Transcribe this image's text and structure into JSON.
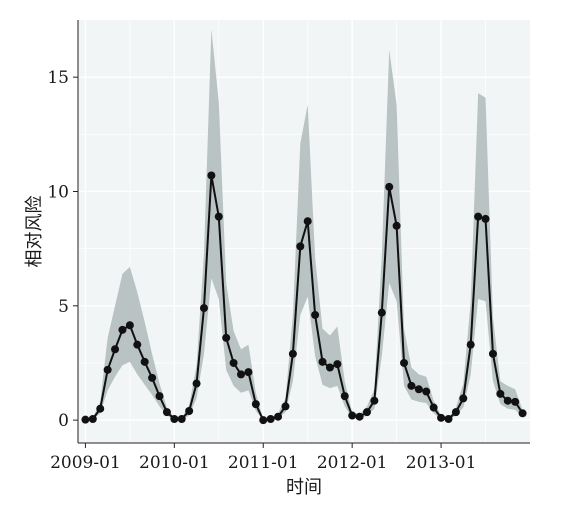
{
  "chart_data": {
    "type": "line",
    "title": "",
    "xlabel": "时间",
    "ylabel": "相对风险",
    "x_tick_labels": [
      "2009-01",
      "2010-01",
      "2011-01",
      "2012-01",
      "2013-01"
    ],
    "y_tick_labels": [
      "0",
      "5",
      "10",
      "15"
    ],
    "y_ticks": [
      0,
      5,
      10,
      15
    ],
    "ylim": [
      -1,
      17.5
    ],
    "xlim": [
      "2008-12",
      "2014-01"
    ],
    "grid": true,
    "colors": {
      "panel_background": "#f2f5f5",
      "grid": "#ffffff",
      "band": "#b9c3c3",
      "line": "#111111"
    },
    "x": [
      "2009-01",
      "2009-02",
      "2009-03",
      "2009-04",
      "2009-05",
      "2009-06",
      "2009-07",
      "2009-08",
      "2009-09",
      "2009-10",
      "2009-11",
      "2009-12",
      "2010-01",
      "2010-02",
      "2010-03",
      "2010-04",
      "2010-05",
      "2010-06",
      "2010-07",
      "2010-08",
      "2010-09",
      "2010-10",
      "2010-11",
      "2010-12",
      "2011-01",
      "2011-02",
      "2011-03",
      "2011-04",
      "2011-05",
      "2011-06",
      "2011-07",
      "2011-08",
      "2011-09",
      "2011-10",
      "2011-11",
      "2011-12",
      "2012-01",
      "2012-02",
      "2012-03",
      "2012-04",
      "2012-05",
      "2012-06",
      "2012-07",
      "2012-08",
      "2012-09",
      "2012-10",
      "2012-11",
      "2012-12",
      "2013-01",
      "2013-02",
      "2013-03",
      "2013-04",
      "2013-05",
      "2013-06",
      "2013-07",
      "2013-08",
      "2013-09",
      "2013-10",
      "2013-11",
      "2013-12"
    ],
    "series": [
      {
        "values": [
          0.02,
          0.05,
          0.5,
          2.2,
          3.1,
          3.95,
          4.15,
          3.3,
          2.55,
          1.85,
          1.05,
          0.35,
          0.05,
          0.05,
          0.4,
          1.6,
          4.9,
          10.7,
          8.9,
          3.6,
          2.5,
          2.0,
          2.1,
          0.7,
          0.0,
          0.05,
          0.15,
          0.6,
          2.9,
          7.6,
          8.7,
          4.6,
          2.55,
          2.3,
          2.45,
          1.05,
          0.2,
          0.15,
          0.35,
          0.85,
          4.7,
          10.2,
          8.5,
          2.5,
          1.5,
          1.35,
          1.25,
          0.55,
          0.1,
          0.05,
          0.35,
          0.95,
          3.3,
          8.9,
          8.8,
          2.9,
          1.15,
          0.85,
          0.8,
          0.3
        ]
      }
    ],
    "band_upper": [
      0.05,
      0.1,
      0.8,
      3.6,
      5.0,
      6.4,
      6.7,
      5.6,
      4.3,
      2.9,
      1.6,
      0.55,
      0.1,
      0.1,
      0.65,
      2.4,
      7.3,
      17.1,
      13.9,
      6.0,
      3.9,
      3.1,
      3.3,
      1.2,
      0.02,
      0.08,
      0.3,
      0.95,
      4.6,
      12.1,
      13.8,
      7.1,
      4.0,
      3.7,
      4.1,
      1.7,
      0.35,
      0.25,
      0.6,
      1.35,
      7.2,
      16.2,
      13.8,
      4.0,
      2.3,
      2.0,
      1.9,
      0.85,
      0.2,
      0.1,
      0.55,
      1.6,
      5.2,
      14.3,
      14.1,
      4.5,
      1.7,
      1.5,
      1.35,
      0.45
    ],
    "band_lower": [
      0.0,
      0.02,
      0.3,
      1.3,
      1.9,
      2.4,
      2.55,
      2.0,
      1.55,
      1.1,
      0.6,
      0.2,
      0.0,
      0.0,
      0.2,
      0.95,
      2.9,
      6.2,
      5.3,
      2.2,
      1.5,
      1.2,
      1.3,
      0.4,
      0.0,
      0.0,
      0.05,
      0.35,
      1.7,
      4.6,
      5.4,
      2.8,
      1.55,
      1.4,
      1.5,
      0.6,
      0.1,
      0.05,
      0.2,
      0.5,
      2.8,
      6.0,
      5.2,
      1.5,
      0.9,
      0.8,
      0.75,
      0.3,
      0.03,
      0.0,
      0.2,
      0.55,
      2.0,
      5.3,
      5.2,
      1.7,
      0.7,
      0.5,
      0.45,
      0.15
    ]
  }
}
